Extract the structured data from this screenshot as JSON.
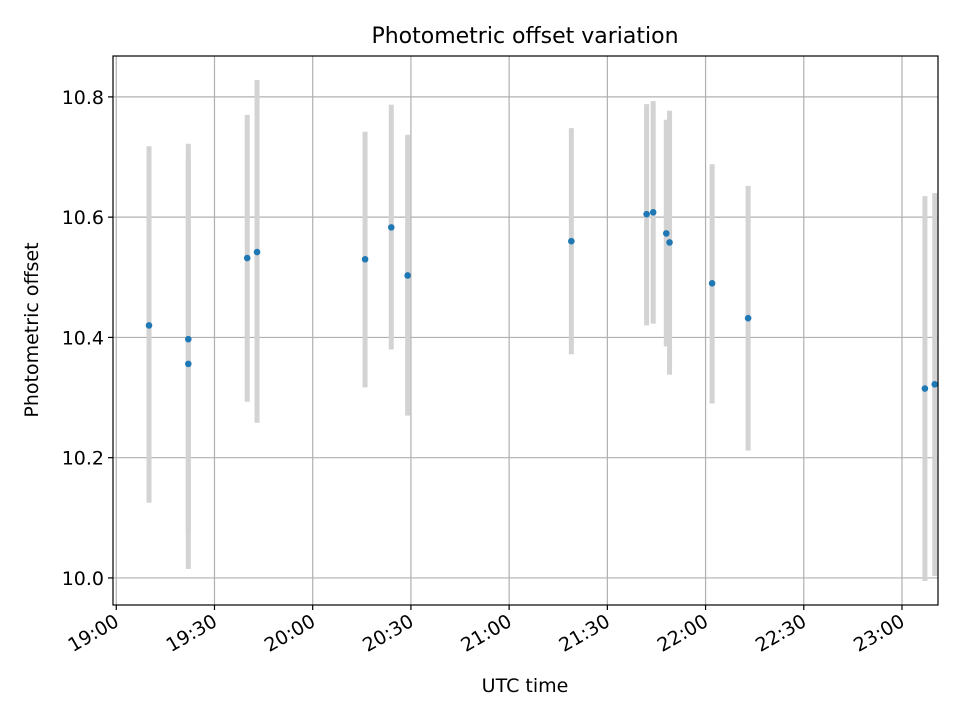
{
  "chart_data": {
    "type": "scatter",
    "title": "Photometric offset variation",
    "xlabel": "UTC time",
    "ylabel": "Photometric offset",
    "x_axis_type": "time",
    "xlim": [
      "18:59",
      "23:11"
    ],
    "ylim": [
      9.955,
      10.868
    ],
    "x_ticks": [
      "19:00",
      "19:30",
      "20:00",
      "20:30",
      "21:00",
      "21:30",
      "22:00",
      "22:30",
      "23:00"
    ],
    "y_ticks": [
      10.0,
      10.2,
      10.4,
      10.6,
      10.8
    ],
    "y_tick_labels": [
      "10.0",
      "10.2",
      "10.4",
      "10.6",
      "10.8"
    ],
    "grid": true,
    "point_color": "#1f77b4",
    "errorbar_color": "#d3d3d3",
    "points": [
      {
        "x": "19:10",
        "y": 10.42,
        "ylow": 10.125,
        "yhigh": 10.718
      },
      {
        "x": "19:22",
        "y": 10.356,
        "ylow": 10.015,
        "yhigh": 10.697
      },
      {
        "x": "19:22",
        "y": 10.397,
        "ylow": 10.073,
        "yhigh": 10.722
      },
      {
        "x": "19:40",
        "y": 10.532,
        "ylow": 10.293,
        "yhigh": 10.77
      },
      {
        "x": "19:43",
        "y": 10.542,
        "ylow": 10.258,
        "yhigh": 10.828
      },
      {
        "x": "20:16",
        "y": 10.53,
        "ylow": 10.317,
        "yhigh": 10.742
      },
      {
        "x": "20:24",
        "y": 10.583,
        "ylow": 10.38,
        "yhigh": 10.787
      },
      {
        "x": "20:29",
        "y": 10.503,
        "ylow": 10.27,
        "yhigh": 10.737
      },
      {
        "x": "21:19",
        "y": 10.56,
        "ylow": 10.372,
        "yhigh": 10.748
      },
      {
        "x": "21:42",
        "y": 10.605,
        "ylow": 10.42,
        "yhigh": 10.788
      },
      {
        "x": "21:44",
        "y": 10.608,
        "ylow": 10.423,
        "yhigh": 10.793
      },
      {
        "x": "21:48",
        "y": 10.573,
        "ylow": 10.385,
        "yhigh": 10.762
      },
      {
        "x": "21:49",
        "y": 10.558,
        "ylow": 10.338,
        "yhigh": 10.777
      },
      {
        "x": "22:02",
        "y": 10.49,
        "ylow": 10.29,
        "yhigh": 10.688
      },
      {
        "x": "22:13",
        "y": 10.432,
        "ylow": 10.212,
        "yhigh": 10.652
      },
      {
        "x": "23:07",
        "y": 10.315,
        "ylow": 9.995,
        "yhigh": 10.635
      },
      {
        "x": "23:10",
        "y": 10.322,
        "ylow": 10.003,
        "yhigh": 10.64
      }
    ]
  }
}
